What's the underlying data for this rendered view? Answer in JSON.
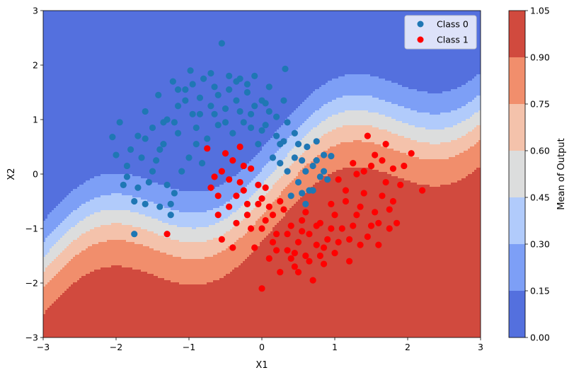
{
  "chart_data": {
    "type": "scatter",
    "title": "",
    "xlabel": "X1",
    "ylabel": "X2",
    "xlim": [
      -3,
      3
    ],
    "ylim": [
      -3,
      3
    ],
    "xticks": [
      "−3",
      "−2",
      "−1",
      "0",
      "1",
      "2",
      "3"
    ],
    "yticks": [
      "−3",
      "−2",
      "−1",
      "0",
      "1",
      "2",
      "3"
    ],
    "legend": {
      "placement": "top-right",
      "entries": [
        "Class 0",
        "Class 1"
      ]
    },
    "colorbar": {
      "label": "Mean of Output",
      "levels": [
        0.0,
        0.15,
        0.3,
        0.45,
        0.6,
        0.75,
        0.9,
        1.05
      ],
      "tick_labels": [
        "0.00",
        "0.15",
        "0.30",
        "0.45",
        "0.60",
        "0.75",
        "0.90",
        "1.05"
      ],
      "colors": [
        "#5470de",
        "#7d9ff6",
        "#b1cbfb",
        "#dcdddd",
        "#f4c2ab",
        "#f18e6c",
        "#d14a3e"
      ]
    },
    "background": "filled contour of model output probability (decision surface)",
    "series": [
      {
        "name": "Class 0",
        "color": "#1f77b4",
        "points": [
          [
            -2.05,
            0.68
          ],
          [
            -2.0,
            0.35
          ],
          [
            -1.95,
            0.95
          ],
          [
            -1.9,
            -0.2
          ],
          [
            -1.85,
            0.15
          ],
          [
            -1.8,
            0.45
          ],
          [
            -1.75,
            -0.5
          ],
          [
            -1.75,
            -1.1
          ],
          [
            -1.7,
            0.7
          ],
          [
            -1.65,
            0.3
          ],
          [
            -1.6,
            -0.55
          ],
          [
            -1.6,
            1.15
          ],
          [
            -1.55,
            -0.15
          ],
          [
            -1.5,
            0.85
          ],
          [
            -1.45,
            0.25
          ],
          [
            -1.42,
            1.45
          ],
          [
            -1.4,
            -0.6
          ],
          [
            -1.35,
            0.55
          ],
          [
            -1.3,
            1.0
          ],
          [
            -1.25,
            -0.75
          ],
          [
            -1.25,
            -0.55
          ],
          [
            -1.22,
            1.7
          ],
          [
            -1.2,
            -0.35
          ],
          [
            -1.15,
            0.75
          ],
          [
            -1.15,
            1.25
          ],
          [
            -1.1,
            0.05
          ],
          [
            -1.05,
            1.55
          ],
          [
            -1.0,
            0.3
          ],
          [
            -0.98,
            1.9
          ],
          [
            -0.95,
            1.1
          ],
          [
            -0.9,
            0.55
          ],
          [
            -0.85,
            1.4
          ],
          [
            -0.82,
            0.2
          ],
          [
            -0.8,
            1.75
          ],
          [
            -0.75,
            0.65
          ],
          [
            -0.7,
            1.25
          ],
          [
            -0.65,
            1.6
          ],
          [
            -0.6,
            0.9
          ],
          [
            -0.55,
            2.4
          ],
          [
            -0.5,
            1.2
          ],
          [
            -0.45,
            1.8
          ],
          [
            -0.4,
            0.75
          ],
          [
            -0.35,
            1.35
          ],
          [
            -0.3,
            1.75
          ],
          [
            -0.25,
            0.95
          ],
          [
            -0.2,
            1.5
          ],
          [
            -0.15,
            1.1
          ],
          [
            -0.1,
            1.8
          ],
          [
            -0.05,
            0.55
          ],
          [
            0.0,
            1.35
          ],
          [
            0.05,
            0.9
          ],
          [
            0.1,
            1.6
          ],
          [
            0.15,
            0.3
          ],
          [
            0.2,
            1.05
          ],
          [
            0.25,
            0.55
          ],
          [
            0.3,
            1.35
          ],
          [
            0.32,
            1.93
          ],
          [
            0.35,
            0.05
          ],
          [
            0.4,
            -0.4
          ],
          [
            0.45,
            0.75
          ],
          [
            0.5,
            -0.15
          ],
          [
            0.55,
            0.25
          ],
          [
            0.6,
            -0.55
          ],
          [
            0.62,
            0.5
          ],
          [
            0.65,
            -0.3
          ],
          [
            0.7,
            0.15
          ],
          [
            0.75,
            0.6
          ],
          [
            0.8,
            -0.05
          ],
          [
            0.85,
            0.35
          ],
          [
            0.9,
            -0.1
          ],
          [
            0.95,
            0.33
          ],
          [
            -1.85,
            -0.05
          ],
          [
            -1.7,
            -0.25
          ],
          [
            -1.5,
            0.05
          ],
          [
            -1.4,
            0.45
          ],
          [
            -1.3,
            -0.2
          ],
          [
            -1.2,
            0.95
          ],
          [
            -1.05,
            1.35
          ],
          [
            -0.95,
            1.65
          ],
          [
            -0.9,
            0.85
          ],
          [
            -0.7,
            1.85
          ],
          [
            -0.6,
            1.45
          ],
          [
            -0.5,
            0.95
          ],
          [
            -0.45,
            1.55
          ],
          [
            -0.3,
            1.15
          ],
          [
            -0.2,
            1.65
          ],
          [
            -0.1,
            1.25
          ],
          [
            0.0,
            0.8
          ],
          [
            0.1,
            1.15
          ],
          [
            0.2,
            0.7
          ],
          [
            0.25,
            0.2
          ],
          [
            0.35,
            0.95
          ],
          [
            0.45,
            0.3
          ],
          [
            0.5,
            0.55
          ],
          [
            0.55,
            -0.35
          ],
          [
            0.7,
            -0.3
          ],
          [
            0.75,
            0.25
          ],
          [
            0.85,
            0.05
          ],
          [
            -1.6,
            0.65
          ],
          [
            -1.35,
            0.95
          ],
          [
            -1.15,
            1.55
          ],
          [
            -0.85,
            1.1
          ],
          [
            -0.65,
            1.1
          ],
          [
            -0.35,
            1.7
          ],
          [
            -0.15,
            0.85
          ],
          [
            0.05,
            1.3
          ],
          [
            0.3,
            0.6
          ],
          [
            0.6,
            0.05
          ]
        ]
      },
      {
        "name": "Class 1",
        "color": "#ff0000",
        "points": [
          [
            -1.3,
            -1.1
          ],
          [
            -0.75,
            0.47
          ],
          [
            -0.65,
            -0.05
          ],
          [
            -0.6,
            -0.4
          ],
          [
            -0.55,
            0.05
          ],
          [
            -0.5,
            0.38
          ],
          [
            -0.45,
            -0.6
          ],
          [
            -0.4,
            0.25
          ],
          [
            -0.35,
            -0.9
          ],
          [
            -0.3,
            0.5
          ],
          [
            -0.25,
            -0.3
          ],
          [
            -0.2,
            -0.75
          ],
          [
            -0.15,
            0.1
          ],
          [
            -0.1,
            -1.35
          ],
          [
            -0.05,
            -0.55
          ],
          [
            0.0,
            -1.0
          ],
          [
            0.0,
            -2.1
          ],
          [
            0.05,
            -0.25
          ],
          [
            0.1,
            -1.55
          ],
          [
            0.15,
            -0.75
          ],
          [
            0.2,
            -1.1
          ],
          [
            0.25,
            -1.8
          ],
          [
            0.3,
            -0.65
          ],
          [
            0.35,
            -1.4
          ],
          [
            0.4,
            -0.95
          ],
          [
            0.45,
            -1.7
          ],
          [
            0.5,
            -1.25
          ],
          [
            0.55,
            -0.85
          ],
          [
            0.6,
            -1.5
          ],
          [
            0.65,
            -1.1
          ],
          [
            0.7,
            -1.95
          ],
          [
            0.75,
            -1.3
          ],
          [
            0.8,
            -0.9
          ],
          [
            0.85,
            -1.65
          ],
          [
            0.9,
            -1.2
          ],
          [
            0.95,
            -0.55
          ],
          [
            1.0,
            -1.45
          ],
          [
            1.05,
            -0.1
          ],
          [
            1.1,
            -1.0
          ],
          [
            1.15,
            -0.5
          ],
          [
            1.2,
            -1.6
          ],
          [
            1.25,
            0.2
          ],
          [
            1.3,
            -0.75
          ],
          [
            1.35,
            -1.3
          ],
          [
            1.4,
            0.05
          ],
          [
            1.45,
            0.7
          ],
          [
            1.5,
            -0.95
          ],
          [
            1.55,
            0.35
          ],
          [
            1.6,
            -1.3
          ],
          [
            1.65,
            -0.4
          ],
          [
            1.7,
            0.55
          ],
          [
            1.75,
            -0.65
          ],
          [
            1.8,
            0.1
          ],
          [
            1.85,
            -0.9
          ],
          [
            1.9,
            -0.2
          ],
          [
            1.95,
            0.15
          ],
          [
            2.05,
            0.38
          ],
          [
            2.2,
            -0.3
          ],
          [
            -0.55,
            -1.2
          ],
          [
            -0.45,
            -0.1
          ],
          [
            -0.35,
            -0.4
          ],
          [
            -0.25,
            0.15
          ],
          [
            -0.15,
            -1.0
          ],
          [
            -0.05,
            -0.2
          ],
          [
            0.05,
            -0.85
          ],
          [
            0.15,
            -1.25
          ],
          [
            0.25,
            -0.5
          ],
          [
            0.35,
            -1.1
          ],
          [
            0.45,
            -1.45
          ],
          [
            0.55,
            -1.05
          ],
          [
            0.65,
            -1.6
          ],
          [
            0.75,
            -0.95
          ],
          [
            0.85,
            -1.35
          ],
          [
            0.95,
            -1.0
          ],
          [
            1.05,
            -1.25
          ],
          [
            1.15,
            -0.3
          ],
          [
            1.25,
            -0.95
          ],
          [
            1.35,
            -0.6
          ],
          [
            1.45,
            -1.15
          ],
          [
            1.55,
            -0.7
          ],
          [
            1.65,
            0.25
          ],
          [
            1.75,
            -1.0
          ],
          [
            1.8,
            -0.5
          ],
          [
            -0.7,
            -0.25
          ],
          [
            -0.6,
            -0.75
          ],
          [
            -0.4,
            -1.35
          ],
          [
            -0.2,
            -0.55
          ],
          [
            0.0,
            -0.45
          ],
          [
            0.2,
            -1.4
          ],
          [
            0.4,
            -1.55
          ],
          [
            0.6,
            -0.7
          ],
          [
            0.8,
            -1.5
          ],
          [
            1.0,
            -0.75
          ],
          [
            1.2,
            -1.2
          ],
          [
            1.4,
            -0.35
          ],
          [
            1.6,
            -0.9
          ],
          [
            -0.3,
            -0.15
          ],
          [
            0.1,
            -0.6
          ],
          [
            0.5,
            -1.8
          ],
          [
            1.3,
            0.0
          ],
          [
            1.5,
            0.15
          ],
          [
            1.7,
            -0.15
          ]
        ]
      }
    ]
  }
}
